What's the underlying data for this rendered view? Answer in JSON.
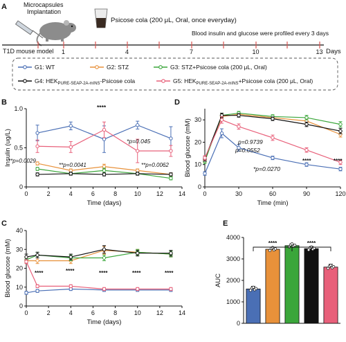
{
  "figure": {
    "panel_letters": [
      "A",
      "B",
      "C",
      "D",
      "E"
    ],
    "panel_a": {
      "implant_label_line1": "Microcapsules",
      "implant_label_line2": "Implantation",
      "psicose_label": "Psicose cola (200 μL, Oral, once everyday)",
      "blood_label": "Blood insulin and glucose were profiled every 3 days",
      "model_label": "T1D mouse model",
      "timeline_ticks": [
        "1",
        "4",
        "7",
        "10",
        "13"
      ],
      "days_label": "Days",
      "legend_prefix": [
        "G1: ",
        "G2: ",
        "G3: ",
        "G4: ",
        "G5: "
      ],
      "legend_main": [
        "WT",
        "STZ",
        "STZ+Psicose cola (200 μL, Oral)",
        "HEK",
        "HEK"
      ],
      "legend_sub": [
        "",
        "",
        "",
        "PURE-SEAP-2A-mINS",
        "PURE-SEAP-2A-mINS"
      ],
      "legend_tail": [
        "",
        "",
        "",
        "-Psicose cola",
        "+Psicose cola (200 μL, Oral)"
      ]
    },
    "colors": {
      "G1": "#4a6fb5",
      "G2": "#e8913a",
      "G3": "#3aa63a",
      "G4": "#111111",
      "G5": "#e8607a"
    }
  },
  "chart_data": [
    {
      "panel": "B",
      "type": "line",
      "xlabel": "Time (days)",
      "ylabel": "Insulin (ug/L)",
      "xlim": [
        0,
        14
      ],
      "ylim": [
        0,
        1.0
      ],
      "xticks": [
        "0",
        "2",
        "4",
        "6",
        "8",
        "10",
        "12",
        "14"
      ],
      "yticks": [
        "0",
        "0.5",
        "1.0"
      ],
      "x": [
        1,
        4,
        7,
        10,
        13
      ],
      "series": [
        {
          "name": "G1",
          "values": [
            0.69,
            0.78,
            0.61,
            0.79,
            0.62
          ],
          "err": [
            0.1,
            0.05,
            0.17,
            0.05,
            0.15
          ]
        },
        {
          "name": "G2",
          "values": [
            0.3,
            0.21,
            0.26,
            0.21,
            0.16
          ],
          "err": [
            0.02,
            0.02,
            0.03,
            0.02,
            0.02
          ]
        },
        {
          "name": "G3",
          "values": [
            0.23,
            0.17,
            0.21,
            0.17,
            0.11
          ],
          "err": [
            0.02,
            0.02,
            0.03,
            0.02,
            0.02
          ]
        },
        {
          "name": "G4",
          "values": [
            0.16,
            0.17,
            0.16,
            0.17,
            0.16
          ],
          "err": [
            0.02,
            0.02,
            0.02,
            0.02,
            0.02
          ]
        },
        {
          "name": "G5",
          "values": [
            0.52,
            0.51,
            0.73,
            0.46,
            0.46
          ],
          "err": [
            0.08,
            0.07,
            0.1,
            0.15,
            0.07
          ]
        }
      ],
      "annotations": [
        "****",
        "*p=0.045",
        "**p=0.0029",
        "**p=0.0041",
        "**p=0.0062"
      ]
    },
    {
      "panel": "C",
      "type": "line",
      "xlabel": "Time (days)",
      "ylabel": "Blood glucose (mM)",
      "xlim": [
        0,
        14
      ],
      "ylim": [
        0,
        40
      ],
      "xticks": [
        "0",
        "2",
        "4",
        "6",
        "8",
        "10",
        "12",
        "14"
      ],
      "yticks": [
        "0",
        "10",
        "20",
        "30",
        "40"
      ],
      "x": [
        0,
        1,
        4,
        7,
        10,
        13
      ],
      "series": [
        {
          "name": "G1",
          "values": [
            7.0,
            8.0,
            9.0,
            8.5,
            8.5,
            8.5
          ],
          "err": [
            0.8,
            0.8,
            0.8,
            0.8,
            0.8,
            0.8
          ]
        },
        {
          "name": "G2",
          "values": [
            24.0,
            24.0,
            24.0,
            29.5,
            28.5,
            27.5
          ],
          "err": [
            1.5,
            1.5,
            1.5,
            2.0,
            1.5,
            1.5
          ]
        },
        {
          "name": "G3",
          "values": [
            24.5,
            27.0,
            25.5,
            25.5,
            28.5,
            27.5
          ],
          "err": [
            1.5,
            1.5,
            1.5,
            1.5,
            1.5,
            1.5
          ]
        },
        {
          "name": "G4",
          "values": [
            26.0,
            27.0,
            26.0,
            30.0,
            28.0,
            28.0
          ],
          "err": [
            1.5,
            1.5,
            1.5,
            2.0,
            1.5,
            1.5
          ]
        },
        {
          "name": "G5",
          "values": [
            23.5,
            10.5,
            10.5,
            9.0,
            9.0,
            9.0
          ],
          "err": [
            1.0,
            0.8,
            0.8,
            0.8,
            0.8,
            0.8
          ]
        }
      ],
      "annotations": [
        "****",
        "****",
        "****",
        "****",
        "****"
      ]
    },
    {
      "panel": "D",
      "type": "line",
      "xlabel": "Time (min)",
      "ylabel": "Blood glucose (mM)",
      "xlim": [
        0,
        120
      ],
      "ylim": [
        0,
        35
      ],
      "xticks": [
        "0",
        "30",
        "60",
        "90",
        "120"
      ],
      "yticks": [
        "0",
        "10",
        "20",
        "30"
      ],
      "x": [
        0,
        15,
        30,
        60,
        90,
        120
      ],
      "series": [
        {
          "name": "G1",
          "values": [
            6.0,
            24.0,
            17.5,
            13.0,
            10.0,
            8.0
          ],
          "err": [
            0.8,
            2.0,
            1.5,
            0.8,
            0.8,
            0.8
          ]
        },
        {
          "name": "G2",
          "values": [
            12.0,
            31.5,
            32.5,
            31.0,
            29.5,
            23.5
          ],
          "err": [
            1.0,
            1.0,
            0.8,
            0.8,
            1.0,
            1.2
          ]
        },
        {
          "name": "G3",
          "values": [
            11.5,
            32.0,
            33.0,
            31.5,
            31.0,
            28.0
          ],
          "err": [
            1.0,
            1.0,
            0.8,
            0.8,
            1.0,
            1.2
          ]
        },
        {
          "name": "G4",
          "values": [
            12.5,
            32.0,
            32.0,
            30.5,
            28.0,
            25.0
          ],
          "err": [
            1.0,
            1.0,
            0.8,
            0.8,
            1.0,
            1.2
          ]
        },
        {
          "name": "G5",
          "values": [
            13.0,
            30.0,
            27.0,
            22.0,
            16.5,
            11.0
          ],
          "err": [
            1.0,
            1.5,
            1.2,
            1.2,
            1.0,
            1.0
          ]
        }
      ],
      "annotations": [
        "p=0.9739",
        "p=0.0552",
        "*p=0.0270",
        "****",
        "****"
      ]
    },
    {
      "panel": "E",
      "type": "bar",
      "ylabel": "AUC",
      "ylim": [
        0,
        4000
      ],
      "yticks": [
        "0",
        "1000",
        "2000",
        "3000",
        "4000"
      ],
      "categories": [
        "G1",
        "G2",
        "G3",
        "G4",
        "G5"
      ],
      "values": [
        1600,
        3450,
        3620,
        3480,
        2620
      ],
      "err": [
        120,
        100,
        50,
        100,
        130
      ],
      "annotations": [
        "****",
        "****"
      ]
    }
  ]
}
